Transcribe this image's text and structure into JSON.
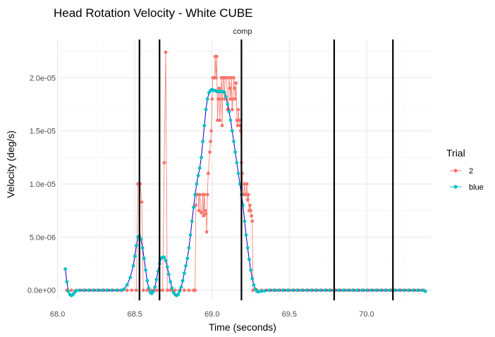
{
  "chart_data": {
    "type": "line",
    "title": "Head Rotation Velocity - White CUBE",
    "facet_label": "comp",
    "xlabel": "Time (seconds)",
    "ylabel": "Velocity (deg/s)",
    "xlim": [
      68.02,
      70.42
    ],
    "ylim": [
      -9.5e-07,
      2.36e-05
    ],
    "x_ticks": [
      68.0,
      68.5,
      69.0,
      69.5,
      70.0
    ],
    "x_tick_labels": [
      "68.0",
      "68.5",
      "69.0",
      "69.5",
      "70.0"
    ],
    "y_ticks": [
      0,
      5e-06,
      1e-05,
      1.5e-05,
      2e-05
    ],
    "y_tick_labels": [
      "0.0e+00",
      "5.0e-06",
      "1.0e-05",
      "1.5e-05",
      "2.0e-05"
    ],
    "vlines": [
      68.53,
      68.66,
      69.19,
      69.79,
      70.17
    ],
    "grid": true,
    "legend": {
      "title": "Trial",
      "position": "right"
    },
    "series": [
      {
        "name": "2",
        "color": "#F8766D",
        "style": "line-points",
        "points": [
          [
            68.06,
            0
          ],
          [
            68.09,
            0
          ],
          [
            68.12,
            0
          ],
          [
            68.15,
            0
          ],
          [
            68.18,
            0
          ],
          [
            68.21,
            0
          ],
          [
            68.24,
            0
          ],
          [
            68.27,
            0
          ],
          [
            68.3,
            0
          ],
          [
            68.33,
            0
          ],
          [
            68.36,
            0
          ],
          [
            68.39,
            0
          ],
          [
            68.42,
            0
          ],
          [
            68.45,
            0
          ],
          [
            68.48,
            0
          ],
          [
            68.51,
            0
          ],
          [
            68.52,
            1e-05
          ],
          [
            68.53,
            1e-05
          ],
          [
            68.535,
            1e-05
          ],
          [
            68.545,
            8.3e-06
          ],
          [
            68.555,
            0
          ],
          [
            68.58,
            0
          ],
          [
            68.61,
            0
          ],
          [
            68.64,
            0
          ],
          [
            68.66,
            0
          ],
          [
            68.68,
            0
          ],
          [
            68.69,
            1.2e-05
          ],
          [
            68.7,
            2.24e-05
          ],
          [
            68.71,
            0
          ],
          [
            68.73,
            0
          ],
          [
            68.76,
            0
          ],
          [
            68.79,
            0
          ],
          [
            68.82,
            0
          ],
          [
            68.85,
            0
          ],
          [
            68.88,
            0
          ],
          [
            68.89,
            0
          ],
          [
            68.895,
            8e-06
          ],
          [
            68.9,
            9e-06
          ],
          [
            68.91,
            9e-06
          ],
          [
            68.915,
            7.5e-06
          ],
          [
            68.92,
            9e-06
          ],
          [
            68.93,
            7.3e-06
          ],
          [
            68.935,
            7.3e-06
          ],
          [
            68.94,
            9e-06
          ],
          [
            68.945,
            7e-06
          ],
          [
            68.95,
            9e-06
          ],
          [
            68.955,
            7.5e-06
          ],
          [
            68.96,
            7.2e-06
          ],
          [
            68.965,
            5.5e-06
          ],
          [
            68.97,
            9e-06
          ],
          [
            68.975,
            1.1e-05
          ],
          [
            68.985,
            1.3e-05
          ],
          [
            68.99,
            1.4e-05
          ],
          [
            68.995,
            1.5e-05
          ],
          [
            69.0,
            1.8e-05
          ],
          [
            69.005,
            2e-05
          ],
          [
            69.01,
            2e-05
          ],
          [
            69.015,
            2e-05
          ],
          [
            69.02,
            2.2e-05
          ],
          [
            69.025,
            2e-05
          ],
          [
            69.03,
            2.2e-05
          ],
          [
            69.035,
            1.6e-05
          ],
          [
            69.04,
            1.8e-05
          ],
          [
            69.045,
            1.9e-05
          ],
          [
            69.05,
            1.6e-05
          ],
          [
            69.055,
            1.8e-05
          ],
          [
            69.06,
            2e-05
          ],
          [
            69.065,
            1.55e-05
          ],
          [
            69.07,
            2e-05
          ],
          [
            69.075,
            2e-05
          ],
          [
            69.08,
            1.8e-05
          ],
          [
            69.085,
            2e-05
          ],
          [
            69.09,
            2e-05
          ],
          [
            69.095,
            2e-05
          ],
          [
            69.1,
            1.7e-05
          ],
          [
            69.105,
            1.7e-05
          ],
          [
            69.11,
            2e-05
          ],
          [
            69.115,
            1.9e-05
          ],
          [
            69.12,
            1.8e-05
          ],
          [
            69.125,
            2e-05
          ],
          [
            69.13,
            1.7e-05
          ],
          [
            69.135,
            1.8e-05
          ],
          [
            69.14,
            2e-05
          ],
          [
            69.145,
            1.9e-05
          ],
          [
            69.15,
            1.8e-05
          ],
          [
            69.155,
            1.95e-05
          ],
          [
            69.16,
            1.6e-05
          ],
          [
            69.165,
            1.55e-05
          ],
          [
            69.17,
            1.7e-05
          ],
          [
            69.175,
            1.6e-05
          ],
          [
            69.18,
            1.55e-05
          ],
          [
            69.185,
            1.5e-05
          ],
          [
            69.19,
            1.2e-05
          ],
          [
            69.195,
            1.1e-05
          ],
          [
            69.2,
            9e-06
          ],
          [
            69.205,
            9e-06
          ],
          [
            69.21,
            1e-05
          ],
          [
            69.215,
            9e-06
          ],
          [
            69.22,
            9e-06
          ],
          [
            69.225,
            1e-05
          ],
          [
            69.23,
            8.5e-06
          ],
          [
            69.235,
            9e-06
          ],
          [
            69.24,
            7.5e-06
          ],
          [
            69.245,
            8e-06
          ],
          [
            69.25,
            7.5e-06
          ],
          [
            69.255,
            7e-06
          ],
          [
            69.26,
            6.5e-06
          ],
          [
            69.265,
            0
          ],
          [
            69.29,
            0
          ],
          [
            69.32,
            0
          ],
          [
            69.35,
            0
          ],
          [
            69.38,
            0
          ],
          [
            69.41,
            0
          ],
          [
            69.44,
            0
          ],
          [
            69.47,
            0
          ],
          [
            69.5,
            0
          ],
          [
            69.53,
            0
          ],
          [
            69.56,
            0
          ],
          [
            69.59,
            0
          ],
          [
            69.62,
            0
          ],
          [
            69.65,
            0
          ],
          [
            69.68,
            0
          ],
          [
            69.71,
            0
          ],
          [
            69.74,
            0
          ],
          [
            69.77,
            0
          ],
          [
            69.8,
            0
          ],
          [
            69.83,
            0
          ],
          [
            69.86,
            0
          ],
          [
            69.89,
            0
          ],
          [
            69.92,
            0
          ],
          [
            69.95,
            0
          ],
          [
            69.98,
            0
          ],
          [
            70.01,
            0
          ],
          [
            70.04,
            0
          ],
          [
            70.07,
            0
          ],
          [
            70.1,
            0
          ],
          [
            70.13,
            0
          ],
          [
            70.16,
            0
          ],
          [
            70.19,
            0
          ],
          [
            70.22,
            0
          ],
          [
            70.25,
            0
          ],
          [
            70.28,
            0
          ],
          [
            70.31,
            0
          ],
          [
            70.34,
            0
          ],
          [
            70.37,
            0
          ]
        ]
      },
      {
        "name": "blue",
        "color": "#00BFC4",
        "line_color": "#0000CC",
        "style": "line-points",
        "points": [
          [
            68.05,
            2e-06
          ],
          [
            68.06,
            8e-07
          ],
          [
            68.07,
            -1e-07
          ],
          [
            68.08,
            -4e-07
          ],
          [
            68.09,
            -5e-07
          ],
          [
            68.1,
            -4e-07
          ],
          [
            68.11,
            -2e-07
          ],
          [
            68.12,
            -5e-08
          ],
          [
            68.14,
            0
          ],
          [
            68.17,
            0
          ],
          [
            68.2,
            0
          ],
          [
            68.23,
            0
          ],
          [
            68.26,
            0
          ],
          [
            68.29,
            0
          ],
          [
            68.32,
            0
          ],
          [
            68.35,
            0
          ],
          [
            68.38,
            0
          ],
          [
            68.41,
            0
          ],
          [
            68.43,
            1e-07
          ],
          [
            68.45,
            5e-07
          ],
          [
            68.47,
            1.2e-06
          ],
          [
            68.49,
            2.3e-06
          ],
          [
            68.5,
            3.2e-06
          ],
          [
            68.51,
            4.2e-06
          ],
          [
            68.52,
            5e-06
          ],
          [
            68.53,
            5.1e-06
          ],
          [
            68.54,
            4.8e-06
          ],
          [
            68.55,
            4e-06
          ],
          [
            68.56,
            3e-06
          ],
          [
            68.57,
            1.9e-06
          ],
          [
            68.58,
            9e-07
          ],
          [
            68.59,
            2e-07
          ],
          [
            68.6,
            -2e-07
          ],
          [
            68.61,
            -3e-07
          ],
          [
            68.62,
            -1e-07
          ],
          [
            68.63,
            3e-07
          ],
          [
            68.64,
            1e-06
          ],
          [
            68.65,
            1.8e-06
          ],
          [
            68.66,
            2.5e-06
          ],
          [
            68.67,
            3e-06
          ],
          [
            68.68,
            3.1e-06
          ],
          [
            68.69,
            3.1e-06
          ],
          [
            68.7,
            2.8e-06
          ],
          [
            68.71,
            2.2e-06
          ],
          [
            68.72,
            1.5e-06
          ],
          [
            68.73,
            8e-07
          ],
          [
            68.74,
            2e-07
          ],
          [
            68.75,
            -2e-07
          ],
          [
            68.76,
            -4e-07
          ],
          [
            68.77,
            -5e-07
          ],
          [
            68.78,
            -4e-07
          ],
          [
            68.79,
            -1e-07
          ],
          [
            68.8,
            3e-07
          ],
          [
            68.81,
            9e-07
          ],
          [
            68.82,
            1.6e-06
          ],
          [
            68.83,
            2.3e-06
          ],
          [
            68.84,
            3e-06
          ],
          [
            68.85,
            4e-06
          ],
          [
            68.86,
            5.2e-06
          ],
          [
            68.87,
            6.5e-06
          ],
          [
            68.88,
            7.8e-06
          ],
          [
            68.89,
            9e-06
          ],
          [
            68.9,
            1e-05
          ],
          [
            68.91,
            1.08e-05
          ],
          [
            68.92,
            1.15e-05
          ],
          [
            68.93,
            1.25e-05
          ],
          [
            68.94,
            1.4e-05
          ],
          [
            68.95,
            1.55e-05
          ],
          [
            68.96,
            1.7e-05
          ],
          [
            68.97,
            1.8e-05
          ],
          [
            68.98,
            1.86e-05
          ],
          [
            68.99,
            1.88e-05
          ],
          [
            69.0,
            1.89e-05
          ],
          [
            69.01,
            1.88e-05
          ],
          [
            69.02,
            1.88e-05
          ],
          [
            69.03,
            1.87e-05
          ],
          [
            69.04,
            1.87e-05
          ],
          [
            69.05,
            1.87e-05
          ],
          [
            69.06,
            1.87e-05
          ],
          [
            69.07,
            1.87e-05
          ],
          [
            69.08,
            1.86e-05
          ],
          [
            69.09,
            1.82e-05
          ],
          [
            69.1,
            1.75e-05
          ],
          [
            69.11,
            1.68e-05
          ],
          [
            69.12,
            1.6e-05
          ],
          [
            69.13,
            1.5e-05
          ],
          [
            69.14,
            1.4e-05
          ],
          [
            69.15,
            1.3e-05
          ],
          [
            69.16,
            1.2e-05
          ],
          [
            69.17,
            1.1e-05
          ],
          [
            69.18,
            1e-05
          ],
          [
            69.19,
            9e-06
          ],
          [
            69.2,
            8e-06
          ],
          [
            69.21,
            6.5e-06
          ],
          [
            69.22,
            5.2e-06
          ],
          [
            69.23,
            4e-06
          ],
          [
            69.24,
            2.9e-06
          ],
          [
            69.25,
            1.9e-06
          ],
          [
            69.26,
            1.1e-06
          ],
          [
            69.27,
            5e-07
          ],
          [
            69.28,
            1e-07
          ],
          [
            69.29,
            -1e-07
          ],
          [
            69.3,
            -1.5e-07
          ],
          [
            69.32,
            -1e-07
          ],
          [
            69.34,
            -5e-08
          ],
          [
            69.37,
            0
          ],
          [
            69.4,
            0
          ],
          [
            69.43,
            0
          ],
          [
            69.46,
            0
          ],
          [
            69.49,
            0
          ],
          [
            69.52,
            0
          ],
          [
            69.55,
            0
          ],
          [
            69.58,
            0
          ],
          [
            69.61,
            0
          ],
          [
            69.64,
            0
          ],
          [
            69.67,
            0
          ],
          [
            69.7,
            0
          ],
          [
            69.73,
            0
          ],
          [
            69.76,
            0
          ],
          [
            69.79,
            0
          ],
          [
            69.82,
            0
          ],
          [
            69.85,
            0
          ],
          [
            69.88,
            0
          ],
          [
            69.91,
            0
          ],
          [
            69.94,
            0
          ],
          [
            69.97,
            0
          ],
          [
            70.0,
            0
          ],
          [
            70.03,
            0
          ],
          [
            70.06,
            0
          ],
          [
            70.09,
            0
          ],
          [
            70.12,
            0
          ],
          [
            70.15,
            0
          ],
          [
            70.18,
            0
          ],
          [
            70.21,
            0
          ],
          [
            70.24,
            0
          ],
          [
            70.27,
            0
          ],
          [
            70.3,
            0
          ],
          [
            70.33,
            0
          ],
          [
            70.36,
            0
          ],
          [
            70.38,
            -1e-07
          ]
        ]
      }
    ]
  }
}
